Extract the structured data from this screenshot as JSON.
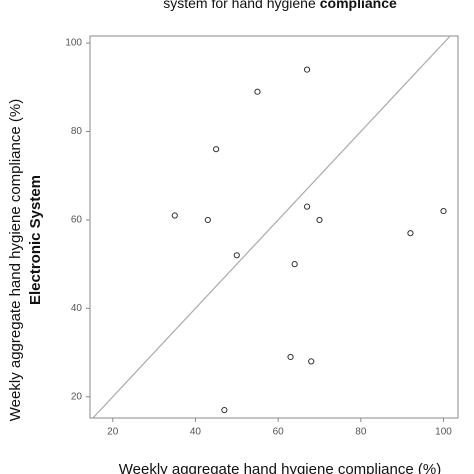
{
  "chart_data": {
    "type": "scatter",
    "title": [
      "system for hand hygiene",
      "compliance"
    ],
    "x_label": "Weekly aggregate hand hygiene compliance (%)",
    "y_label": [
      "Weekly aggregate hand hygiene compliance (%)",
      "Electronic System"
    ],
    "x": [
      67,
      55,
      45,
      35,
      43,
      50,
      67,
      70,
      100,
      92,
      64,
      63,
      68,
      47
    ],
    "values": [
      94,
      89,
      76,
      61,
      60,
      52,
      63,
      60,
      62,
      57,
      50,
      29,
      28,
      17
    ],
    "color": "#333333",
    "xlim": [
      14.5,
      103.5
    ],
    "ylim": [
      15.2,
      101.6
    ],
    "xticks": [
      20,
      40,
      60,
      80,
      100
    ],
    "yticks": [
      20,
      40,
      60,
      80,
      100
    ]
  }
}
